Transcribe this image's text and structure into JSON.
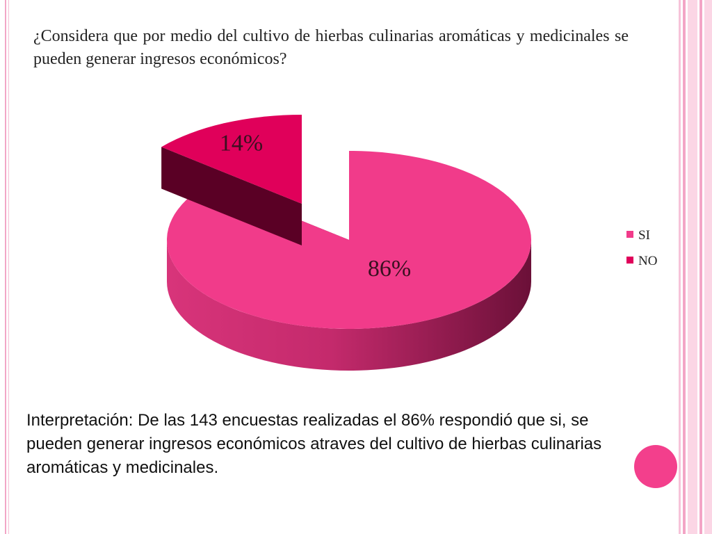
{
  "question": "¿Considera que por medio del cultivo de hierbas culinarias aromáticas y medicinales se pueden generar ingresos económicos?",
  "chart_data": {
    "type": "pie",
    "style": "3d-exploded",
    "slices": [
      {
        "label": "SI",
        "value": 86,
        "display": "86%",
        "color": "#f13b8a",
        "dark": "#6b1038"
      },
      {
        "label": "NO",
        "value": 14,
        "display": "14%",
        "color": "#e0005a",
        "dark": "#5a0025"
      }
    ],
    "legend": {
      "position": "right",
      "entries": [
        "SI",
        "NO"
      ]
    }
  },
  "interpretation": "Interpretación: De las 143 encuestas realizadas el 86% respondió que si, se pueden generar ingresos económicos atraves del cultivo de hierbas culinarias aromáticas y medicinales.",
  "colors": {
    "accent": "#f33f8c",
    "border_light": "#f5bdd5"
  }
}
